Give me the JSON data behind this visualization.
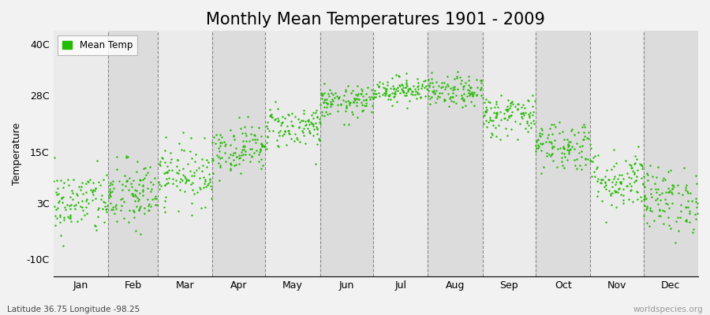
{
  "title": "Monthly Mean Temperatures 1901 - 2009",
  "ylabel": "Temperature",
  "xlabel_labels": [
    "Jan",
    "Feb",
    "Mar",
    "Apr",
    "May",
    "Jun",
    "Jul",
    "Aug",
    "Sep",
    "Oct",
    "Nov",
    "Dec"
  ],
  "ytick_labels": [
    "-10C",
    "3C",
    "15C",
    "28C",
    "40C"
  ],
  "ytick_values": [
    -10,
    3,
    15,
    28,
    40
  ],
  "ylim": [
    -14,
    43
  ],
  "legend_label": "Mean Temp",
  "dot_color": "#22bb00",
  "dot_size": 3,
  "background_color": "#f2f2f2",
  "stripe_light": "#ebebeb",
  "stripe_dark": "#dcdcdc",
  "subtitle": "Latitude 36.75 Longitude -98.25",
  "watermark": "worldspecies.org",
  "title_fontsize": 15,
  "axis_fontsize": 9,
  "monthly_means": [
    3.2,
    4.8,
    9.8,
    15.8,
    20.8,
    26.5,
    29.5,
    28.8,
    23.5,
    16.5,
    8.5,
    3.8
  ],
  "monthly_stds": [
    3.8,
    4.2,
    3.5,
    2.8,
    2.5,
    1.8,
    1.5,
    1.8,
    2.5,
    3.0,
    3.5,
    3.8
  ],
  "year_start": 1901,
  "year_end": 2009
}
